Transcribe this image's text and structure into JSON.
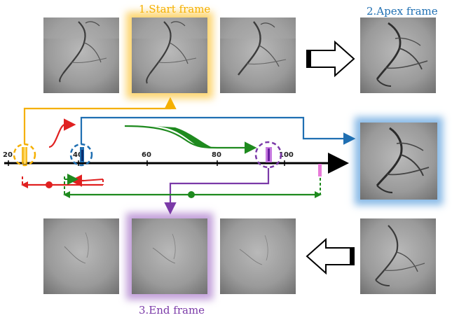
{
  "labels": {
    "start": "1.Start frame",
    "apex": "2.Apex frame",
    "end": "3.End frame"
  },
  "axis": {
    "ticks": [
      "20",
      "40",
      "60",
      "80",
      "100"
    ]
  },
  "colors": {
    "start": "#f5b000",
    "apex": "#1f6fb2",
    "end": "#7b3aa8",
    "onset": "#e02020",
    "duration": "#1e8a1e",
    "offset_mark": "#e77ad8"
  },
  "frames": {
    "top": [
      "angiogram-frame",
      "angiogram-frame",
      "angiogram-frame",
      "angiogram-frame"
    ],
    "middle": [
      "angiogram-frame"
    ],
    "bottom": [
      "angiogram-frame",
      "angiogram-frame",
      "angiogram-frame",
      "angiogram-frame"
    ]
  },
  "icons": {
    "right_arrow": "hollow-right-arrow-icon",
    "left_arrow": "hollow-left-arrow-icon"
  }
}
